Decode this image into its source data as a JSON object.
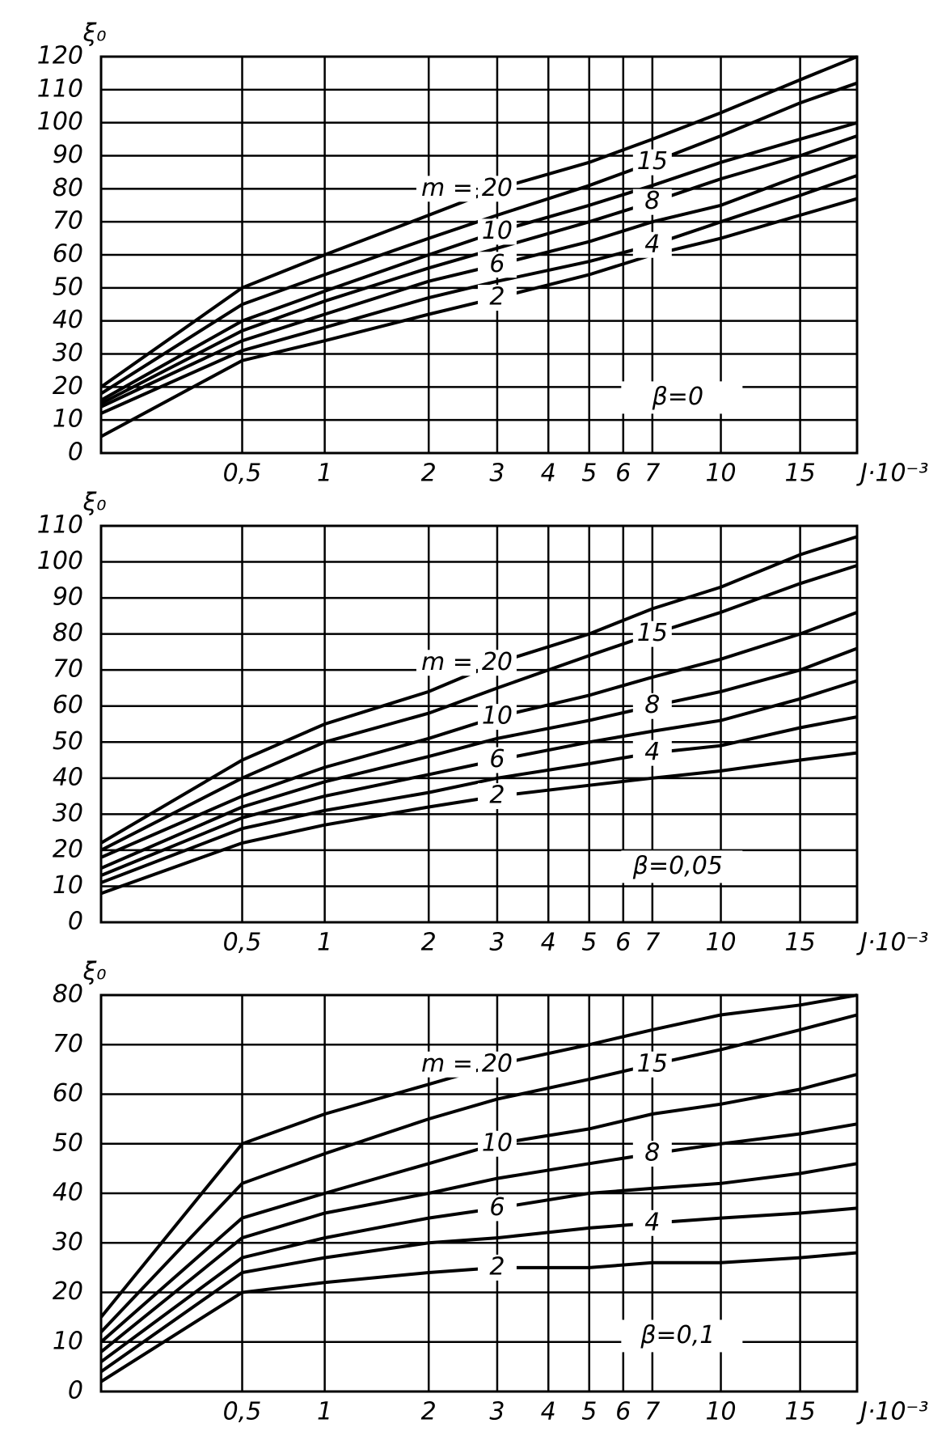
{
  "chart_data": [
    {
      "type": "line",
      "y_label": "ξ₀",
      "x_label": "J·10⁻³",
      "annotation": "β=0",
      "legend_title": "m =",
      "x": [
        0,
        0.5,
        1,
        2,
        3,
        5,
        7,
        10,
        15,
        20
      ],
      "xlim": [
        0,
        20
      ],
      "xticks": [
        {
          "value": 0.5,
          "label": "0,5"
        },
        1,
        2,
        3,
        4,
        5,
        6,
        7,
        10,
        15
      ],
      "ylim": [
        0,
        120
      ],
      "yticks": [
        0,
        10,
        20,
        30,
        40,
        50,
        60,
        70,
        80,
        90,
        100,
        110,
        120
      ],
      "grid": true,
      "series": [
        {
          "name": "20",
          "color": "#000000",
          "values": [
            20,
            50,
            60,
            72,
            80,
            88,
            95,
            103,
            113,
            120
          ]
        },
        {
          "name": "15",
          "color": "#000000",
          "values": [
            18,
            45,
            54,
            65,
            72,
            81,
            88,
            96,
            106,
            112
          ]
        },
        {
          "name": "10",
          "color": "#000000",
          "values": [
            16,
            40,
            49,
            60,
            67,
            75,
            81,
            88,
            95,
            100
          ]
        },
        {
          "name": "8",
          "color": "#000000",
          "values": [
            15,
            37,
            46,
            56,
            62,
            70,
            76,
            83,
            90,
            96
          ]
        },
        {
          "name": "6",
          "color": "#000000",
          "values": [
            14,
            34,
            42,
            52,
            57,
            64,
            70,
            75,
            84,
            90
          ]
        },
        {
          "name": "4",
          "color": "#000000",
          "values": [
            12,
            31,
            38,
            47,
            52,
            58,
            63,
            70,
            78,
            84
          ]
        },
        {
          "name": "2",
          "color": "#000000",
          "values": [
            5,
            28,
            34,
            42,
            47,
            54,
            60,
            65,
            72,
            77
          ]
        }
      ]
    },
    {
      "type": "line",
      "y_label": "ξ₀",
      "x_label": "J·10⁻³",
      "annotation": "β=0,05",
      "legend_title": "m =",
      "x": [
        0,
        0.5,
        1,
        2,
        3,
        5,
        7,
        10,
        15,
        20
      ],
      "xlim": [
        0,
        20
      ],
      "xticks": [
        {
          "value": 0.5,
          "label": "0,5"
        },
        1,
        2,
        3,
        4,
        5,
        6,
        7,
        10,
        15
      ],
      "ylim": [
        0,
        110
      ],
      "yticks": [
        0,
        10,
        20,
        30,
        40,
        50,
        60,
        70,
        80,
        90,
        100,
        110
      ],
      "grid": true,
      "series": [
        {
          "name": "20",
          "color": "#000000",
          "values": [
            22,
            45,
            55,
            64,
            72,
            80,
            87,
            93,
            102,
            107
          ]
        },
        {
          "name": "15",
          "color": "#000000",
          "values": [
            20,
            40,
            50,
            58,
            65,
            74,
            80,
            86,
            94,
            99
          ]
        },
        {
          "name": "10",
          "color": "#000000",
          "values": [
            18,
            35,
            43,
            51,
            57,
            63,
            68,
            73,
            80,
            86
          ]
        },
        {
          "name": "8",
          "color": "#000000",
          "values": [
            15,
            32,
            39,
            46,
            51,
            56,
            60,
            64,
            70,
            76
          ]
        },
        {
          "name": "6",
          "color": "#000000",
          "values": [
            13,
            29,
            35,
            41,
            45,
            50,
            53,
            56,
            62,
            67
          ]
        },
        {
          "name": "4",
          "color": "#000000",
          "values": [
            11,
            26,
            31,
            36,
            40,
            44,
            47,
            49,
            54,
            57
          ]
        },
        {
          "name": "2",
          "color": "#000000",
          "values": [
            8,
            22,
            27,
            32,
            35,
            38,
            40,
            42,
            45,
            47
          ]
        }
      ]
    },
    {
      "type": "line",
      "y_label": "ξ₀",
      "x_label": "J·10⁻³",
      "annotation": "β=0,1",
      "legend_title": "m =",
      "x": [
        0,
        0.5,
        1,
        2,
        3,
        5,
        7,
        10,
        15,
        20
      ],
      "xlim": [
        0,
        20
      ],
      "xticks": [
        {
          "value": 0.5,
          "label": "0,5"
        },
        1,
        2,
        3,
        4,
        5,
        6,
        7,
        10,
        15
      ],
      "ylim": [
        0,
        80
      ],
      "yticks": [
        0,
        10,
        20,
        30,
        40,
        50,
        60,
        70,
        80
      ],
      "grid": true,
      "series": [
        {
          "name": "20",
          "color": "#000000",
          "values": [
            15,
            50,
            56,
            62,
            66,
            70,
            73,
            76,
            78,
            80
          ]
        },
        {
          "name": "15",
          "color": "#000000",
          "values": [
            12,
            42,
            48,
            55,
            59,
            63,
            66,
            69,
            73,
            76
          ]
        },
        {
          "name": "10",
          "color": "#000000",
          "values": [
            10,
            35,
            40,
            46,
            50,
            53,
            56,
            58,
            61,
            64
          ]
        },
        {
          "name": "8",
          "color": "#000000",
          "values": [
            8,
            31,
            36,
            40,
            43,
            46,
            48,
            50,
            52,
            54
          ]
        },
        {
          "name": "6",
          "color": "#000000",
          "values": [
            6,
            27,
            31,
            35,
            37,
            40,
            41,
            42,
            44,
            46
          ]
        },
        {
          "name": "4",
          "color": "#000000",
          "values": [
            4,
            24,
            27,
            30,
            31,
            33,
            34,
            35,
            36,
            37
          ]
        },
        {
          "name": "2",
          "color": "#000000",
          "values": [
            2,
            20,
            22,
            24,
            25,
            25,
            26,
            26,
            27,
            28
          ]
        }
      ]
    }
  ]
}
